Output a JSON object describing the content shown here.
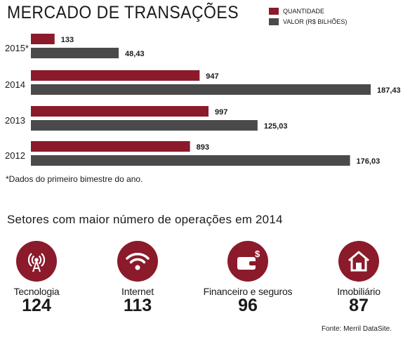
{
  "title": "MERCADO DE TRANSAÇÕES",
  "legend": [
    {
      "label": "QUANTIDADE",
      "color": "#8b1a2b"
    },
    {
      "label": "VALOR (R$ BILHÕES)",
      "color": "#4a4a4a"
    }
  ],
  "chart_data": {
    "type": "bar",
    "orientation": "horizontal",
    "categories": [
      "2015*",
      "2014",
      "2013",
      "2012"
    ],
    "series": [
      {
        "name": "QUANTIDADE",
        "values": [
          133,
          947,
          997,
          893
        ],
        "labels": [
          "133",
          "947",
          "997",
          "893"
        ],
        "color": "#8b1a2b"
      },
      {
        "name": "VALOR (R$ BILHÕES)",
        "values": [
          48.43,
          187.43,
          125.03,
          176.03
        ],
        "labels": [
          "48,43",
          "187,43",
          "125,03",
          "176,03"
        ],
        "color": "#4a4a4a"
      }
    ]
  },
  "footnote": "*Dados do primeiro bimestre do ano.",
  "sectors_title": "Setores com maior número de operações em 2014",
  "sectors": [
    {
      "label": "Tecnologia",
      "count": "124",
      "icon": "antenna-icon"
    },
    {
      "label": "Internet",
      "count": "113",
      "icon": "wifi-icon"
    },
    {
      "label": "Financeiro e seguros",
      "count": "96",
      "icon": "wallet-icon"
    },
    {
      "label": "Imobiliário",
      "count": "87",
      "icon": "house-icon"
    }
  ],
  "source": "Fonte: Merril DataSite."
}
